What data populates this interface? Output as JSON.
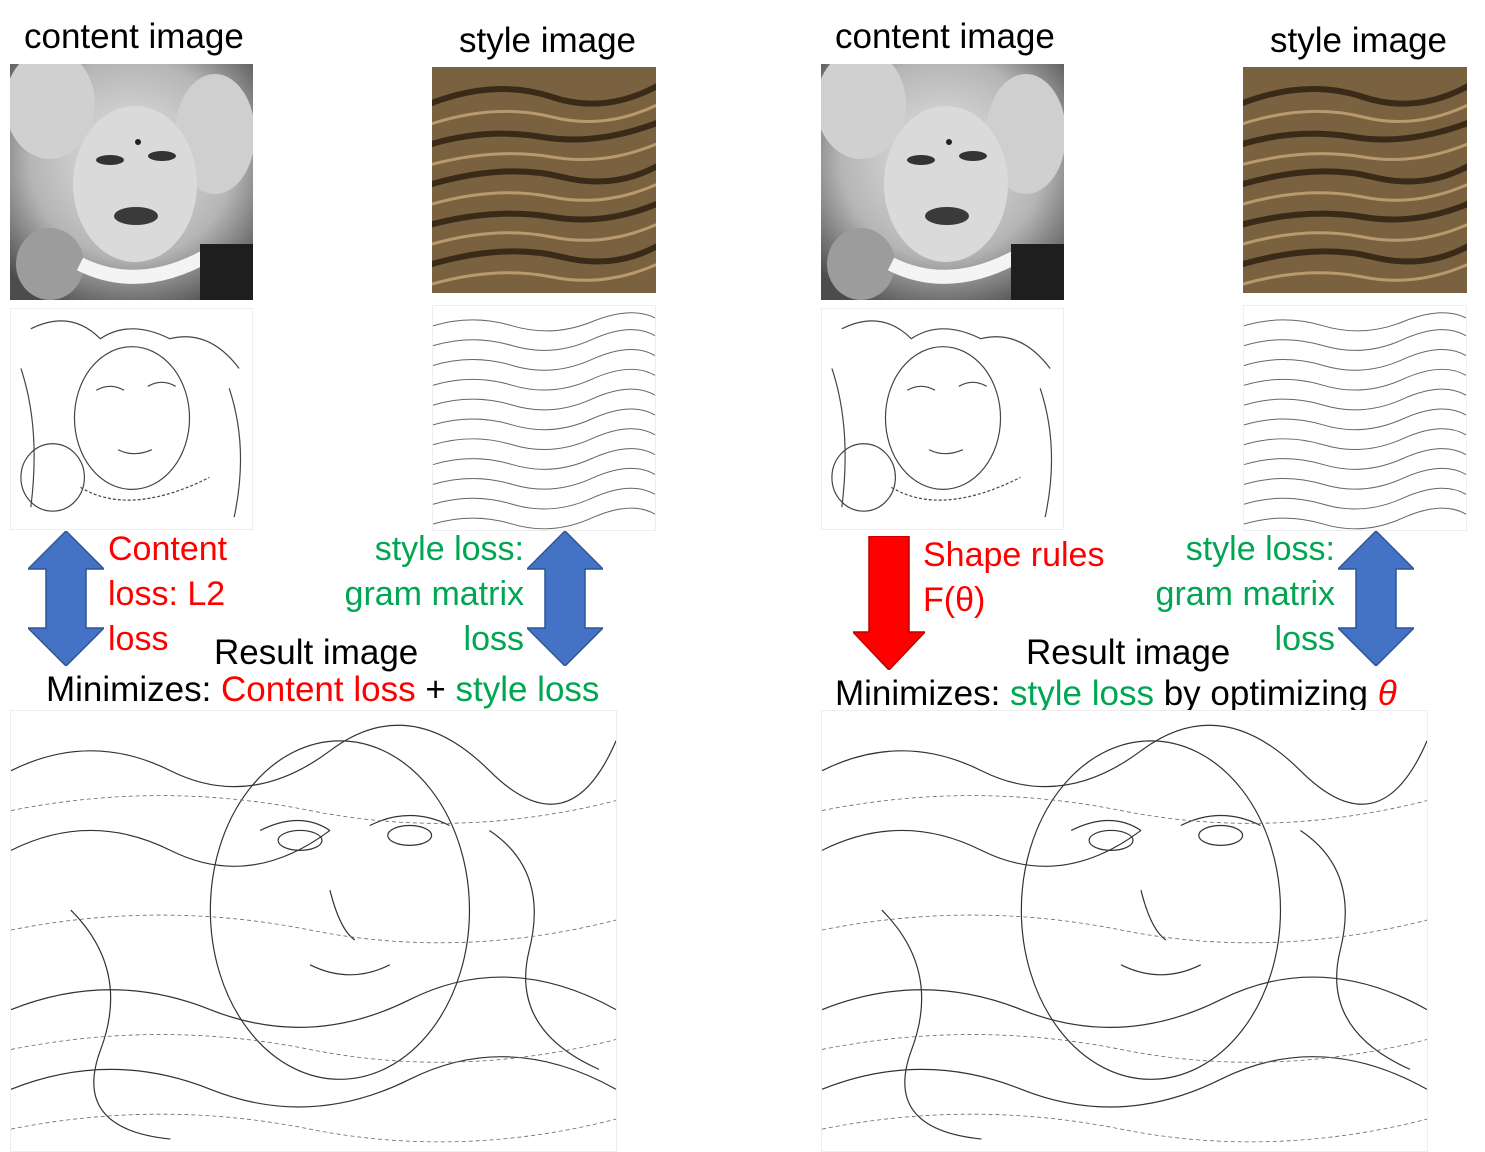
{
  "colors": {
    "red": "#ff0000",
    "green": "#00a651",
    "arrow_blue": "#4472c4",
    "arrow_red": "#ff0000"
  },
  "left_panel": {
    "content_label": "content image",
    "style_label": "style image",
    "content_loss_lines": [
      "Content",
      "loss: L2",
      "loss"
    ],
    "style_loss_lines": [
      "style loss:",
      "gram matrix",
      "loss"
    ],
    "result_label": "Result image",
    "minimizes": {
      "prefix": "Minimizes: ",
      "content": "Content loss",
      "plus": " + ",
      "style": "style loss"
    }
  },
  "right_panel": {
    "content_label": "content image",
    "style_label": "style image",
    "shape_rules_lines": [
      "Shape rules",
      "F(θ)"
    ],
    "style_loss_lines": [
      "style loss:",
      "gram matrix",
      "loss"
    ],
    "result_label": "Result image",
    "minimizes": {
      "prefix": "Minimizes: ",
      "style": "style loss",
      "by": " by optimizing ",
      "theta": "θ"
    }
  },
  "icons": {
    "content_arrow": "double-headed-arrow-icon",
    "style_arrow": "double-headed-arrow-icon",
    "shape_arrow": "down-arrow-icon"
  }
}
